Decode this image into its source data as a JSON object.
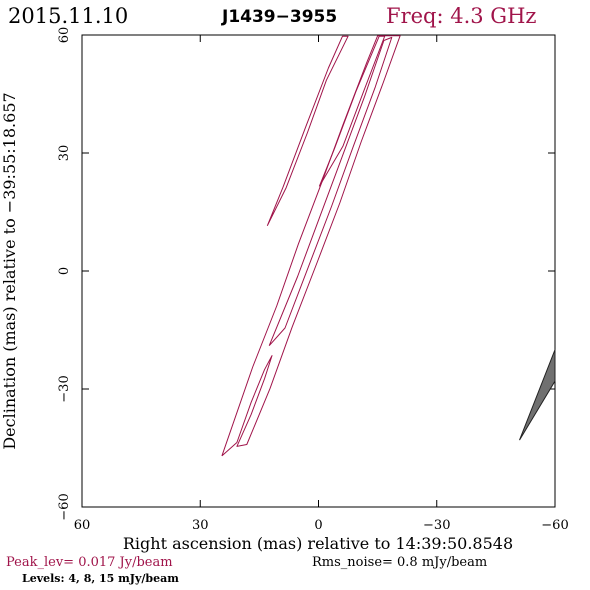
{
  "header": {
    "date": "2015.11.10",
    "source": "J1439−3955",
    "freq": "Freq: 4.3 GHz"
  },
  "footer": {
    "peak": "Peak_lev=  0.017 Jy/beam",
    "rms": "Rms_noise=  0.8 mJy/beam",
    "levels": "Levels:   4,   8,  15 mJy/beam"
  },
  "colors": {
    "contour": "#a0144a",
    "header_freq": "#a0144a",
    "beam": "#707070"
  },
  "chart_data": {
    "type": "contour",
    "xlabel": "Right ascension (mas) relative to 14:39:50.8548",
    "ylabel": "Declination (mas) relative to −39:55:18.657",
    "xlim": [
      60,
      -60
    ],
    "ylim": [
      -60,
      60
    ],
    "xticks": [
      60,
      30,
      0,
      -30,
      -60
    ],
    "yticks": [
      -60,
      -30,
      0,
      30,
      60
    ],
    "xtick_labels": [
      "60",
      "30",
      "0",
      "−30",
      "−60"
    ],
    "ytick_labels": [
      "−60",
      "−30",
      "0",
      "30",
      "60"
    ],
    "contours": [
      {
        "level": 4,
        "points": [
          [
            24.5,
            -47
          ],
          [
            16.7,
            -24.4
          ],
          [
            10.6,
            -8.9
          ],
          [
            5.1,
            6.9
          ],
          [
            -0.7,
            22.2
          ],
          [
            -6.3,
            37.4
          ],
          [
            -12.2,
            52.9
          ],
          [
            -15,
            59.8
          ],
          [
            -20.7,
            59.8
          ],
          [
            -16.4,
            47.8
          ],
          [
            -10.8,
            32.8
          ],
          [
            -5.4,
            17.3
          ],
          [
            0.3,
            2.3
          ],
          [
            6.7,
            -14.3
          ],
          [
            12.3,
            -29.9
          ],
          [
            18.2,
            -44.1
          ],
          [
            20.7,
            -44.6
          ],
          [
            17.1,
            -36.5
          ],
          [
            13.7,
            -27.4
          ],
          [
            11.8,
            -21.5
          ],
          [
            13.7,
            -25.1
          ],
          [
            17.1,
            -33.4
          ],
          [
            20.7,
            -43.6
          ],
          [
            24.5,
            -47
          ]
        ]
      },
      {
        "level": 8,
        "points": [
          [
            12.5,
            -19
          ],
          [
            5.3,
            -1.4
          ],
          [
            -0.3,
            13.7
          ],
          [
            -6.1,
            29.3
          ],
          [
            -11.7,
            44.4
          ],
          [
            -16.6,
            58.6
          ],
          [
            -18.6,
            59.4
          ],
          [
            -14.4,
            46.8
          ],
          [
            -8.8,
            31.6
          ],
          [
            -3.3,
            16.4
          ],
          [
            2.5,
            1.2
          ],
          [
            8.5,
            -14.5
          ],
          [
            12.5,
            -19
          ]
        ]
      },
      {
        "level": 15,
        "points": [
          [
            -0.2,
            21.5
          ],
          [
            -4,
            31
          ],
          [
            -9.5,
            45.6
          ],
          [
            -15.4,
            59.7
          ],
          [
            -16.8,
            59.7
          ],
          [
            -11.5,
            45.8
          ],
          [
            -6.2,
            31.7
          ],
          [
            -0.2,
            21.5
          ]
        ]
      },
      {
        "level": 4,
        "points": [
          [
            13,
            11.5
          ],
          [
            9,
            21.3
          ],
          [
            3.3,
            36.5
          ],
          [
            -2.5,
            51.6
          ],
          [
            -6.1,
            59.7
          ],
          [
            -7.5,
            59.7
          ],
          [
            -2,
            48.5
          ],
          [
            2.8,
            35.2
          ],
          [
            8.2,
            21.2
          ],
          [
            13,
            11.5
          ]
        ]
      }
    ],
    "beam": {
      "points": [
        [
          -51,
          -43
        ],
        [
          -60,
          -20
        ],
        [
          -60,
          -28
        ],
        [
          -51,
          -43
        ]
      ]
    }
  }
}
